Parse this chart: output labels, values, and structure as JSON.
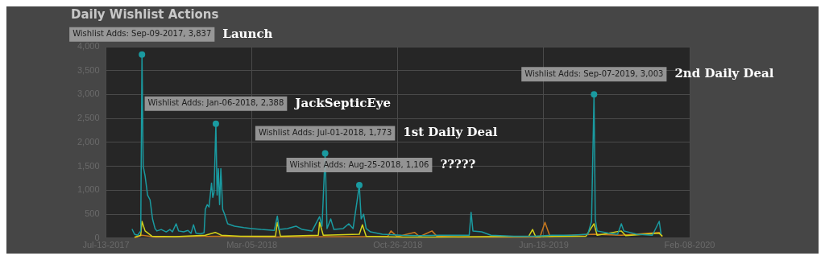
{
  "chart_data": {
    "type": "line",
    "title": "Daily Wishlist Actions",
    "xlim": [
      "2017-07-13",
      "2020-02-08"
    ],
    "xticks": [
      {
        "value": "2017-07-13",
        "label": "Jul-13-2017"
      },
      {
        "value": "2018-03-05",
        "label": "Mar-05-2018"
      },
      {
        "value": "2018-10-26",
        "label": "Oct-26-2018"
      },
      {
        "value": "2019-06-18",
        "label": "Jun-18-2019"
      },
      {
        "value": "2020-02-08",
        "label": "Feb-08-2020"
      }
    ],
    "ylim": [
      0,
      4000
    ],
    "yticks": [
      0,
      {
        "value": 500,
        "label": "500"
      },
      {
        "value": 1000,
        "label": "1,000"
      },
      {
        "value": 1500,
        "label": "1,500"
      },
      {
        "value": 2000,
        "label": "2,000"
      },
      {
        "value": 2500,
        "label": "2,500"
      },
      {
        "value": 3000,
        "label": "3,000"
      },
      {
        "value": 3500,
        "label": "3,500"
      },
      {
        "value": 4000,
        "label": "4,000"
      }
    ],
    "grid": true,
    "legend": false,
    "marker": "none",
    "line_style": "solid",
    "series": [
      {
        "color": "#1a9aa0",
        "x": [
          "2017-08-24",
          "2017-08-28",
          "2017-09-02",
          "2017-09-07",
          "2017-09-09",
          "2017-09-11",
          "2017-09-14",
          "2017-09-18",
          "2017-09-22",
          "2017-09-26",
          "2017-09-30",
          "2017-10-03",
          "2017-10-10",
          "2017-10-18",
          "2017-10-24",
          "2017-10-28",
          "2017-11-03",
          "2017-11-07",
          "2017-11-15",
          "2017-11-22",
          "2017-11-27",
          "2017-12-01",
          "2017-12-05",
          "2017-12-12",
          "2017-12-18",
          "2017-12-20",
          "2017-12-23",
          "2017-12-26",
          "2017-12-30",
          "2018-01-01",
          "2018-01-03",
          "2018-01-06",
          "2018-01-08",
          "2018-01-10",
          "2018-01-12",
          "2018-01-14",
          "2018-01-17",
          "2018-01-20",
          "2018-01-25",
          "2018-02-05",
          "2018-02-20",
          "2018-03-05",
          "2018-03-20",
          "2018-04-10",
          "2018-04-15",
          "2018-04-18",
          "2018-05-01",
          "2018-05-15",
          "2018-05-25",
          "2018-06-10",
          "2018-06-22",
          "2018-06-26",
          "2018-07-01",
          "2018-07-04",
          "2018-07-10",
          "2018-07-15",
          "2018-07-30",
          "2018-08-08",
          "2018-08-15",
          "2018-08-20",
          "2018-08-25",
          "2018-08-28",
          "2018-09-01",
          "2018-09-05",
          "2018-09-12",
          "2018-10-01",
          "2018-11-01",
          "2018-12-01",
          "2019-01-01",
          "2019-02-18",
          "2019-02-21",
          "2019-02-24",
          "2019-03-10",
          "2019-03-25",
          "2019-05-01",
          "2019-06-01",
          "2019-07-01",
          "2019-08-01",
          "2019-08-28",
          "2019-09-03",
          "2019-09-07",
          "2019-09-09",
          "2019-09-12",
          "2019-10-01",
          "2019-10-15",
          "2019-10-21",
          "2019-10-25",
          "2019-11-15",
          "2019-12-10",
          "2019-12-21",
          "2019-12-24"
        ],
        "values": [
          190,
          80,
          60,
          150,
          3837,
          1500,
          1300,
          900,
          800,
          400,
          200,
          150,
          180,
          130,
          180,
          130,
          300,
          150,
          130,
          160,
          100,
          280,
          100,
          90,
          110,
          600,
          700,
          650,
          1150,
          850,
          950,
          2388,
          900,
          1450,
          700,
          1450,
          600,
          500,
          300,
          250,
          220,
          200,
          180,
          160,
          460,
          180,
          200,
          250,
          180,
          150,
          450,
          250,
          1773,
          200,
          400,
          180,
          200,
          300,
          200,
          650,
          1106,
          400,
          500,
          200,
          130,
          80,
          60,
          50,
          60,
          60,
          540,
          150,
          130,
          60,
          40,
          40,
          60,
          60,
          80,
          350,
          3003,
          400,
          150,
          100,
          80,
          300,
          150,
          80,
          60,
          350,
          80
        ]
      },
      {
        "color": "#d4d41a",
        "x": [
          "2017-08-28",
          "2017-09-07",
          "2017-09-09",
          "2017-09-14",
          "2017-09-25",
          "2017-11-01",
          "2017-12-20",
          "2018-01-05",
          "2018-01-15",
          "2018-02-15",
          "2018-04-12",
          "2018-04-15",
          "2018-04-20",
          "2018-06-20",
          "2018-06-22",
          "2018-06-28",
          "2018-08-25",
          "2018-08-30",
          "2018-09-05",
          "2018-11-01",
          "2019-01-01",
          "2019-05-25",
          "2019-05-31",
          "2019-06-05",
          "2019-08-25",
          "2019-09-07",
          "2019-09-12",
          "2019-10-21",
          "2019-10-28",
          "2019-12-21",
          "2019-12-26"
        ],
        "values": [
          20,
          60,
          350,
          150,
          40,
          30,
          60,
          120,
          60,
          40,
          40,
          330,
          40,
          60,
          330,
          60,
          80,
          280,
          40,
          20,
          20,
          40,
          180,
          30,
          40,
          300,
          60,
          150,
          50,
          100,
          40
        ]
      },
      {
        "color": "#c8781e",
        "x": [
          "2017-08-28",
          "2017-09-09",
          "2017-10-01",
          "2018-01-05",
          "2018-04-01",
          "2018-07-01",
          "2018-09-01",
          "2018-10-10",
          "2018-10-15",
          "2018-10-25",
          "2018-11-22",
          "2018-11-30",
          "2018-12-20",
          "2018-12-28",
          "2019-02-01",
          "2019-06-12",
          "2019-06-20",
          "2019-06-28",
          "2019-09-07",
          "2019-10-21",
          "2019-12-21",
          "2019-12-26"
        ],
        "values": [
          10,
          60,
          20,
          40,
          20,
          30,
          30,
          40,
          150,
          30,
          120,
          30,
          150,
          40,
          20,
          20,
          330,
          40,
          80,
          60,
          120,
          30
        ]
      }
    ],
    "annotations": [
      {
        "text": "Wishlist Adds: Sep-09-2017, 3,837",
        "x": "2017-09-09",
        "y": 3837
      },
      "Launch",
      {
        "text": "Wishlist Adds: Jan-06-2018, 2,388",
        "x": "2018-01-06",
        "y": 2388
      },
      "JackSepticEye",
      {
        "text": "Wishlist Adds: Jul-01-2018, 1,773",
        "x": "2018-07-01",
        "y": 1773
      },
      "1st Daily Deal",
      {
        "text": "Wishlist Adds: Aug-25-2018, 1,106",
        "x": "2018-08-25",
        "y": 1106
      },
      "?????",
      {
        "text": "Wishlist Adds: Sep-07-2019, 3,003",
        "x": "2019-09-07",
        "y": 3003
      },
      "2nd Daily Deal"
    ]
  }
}
